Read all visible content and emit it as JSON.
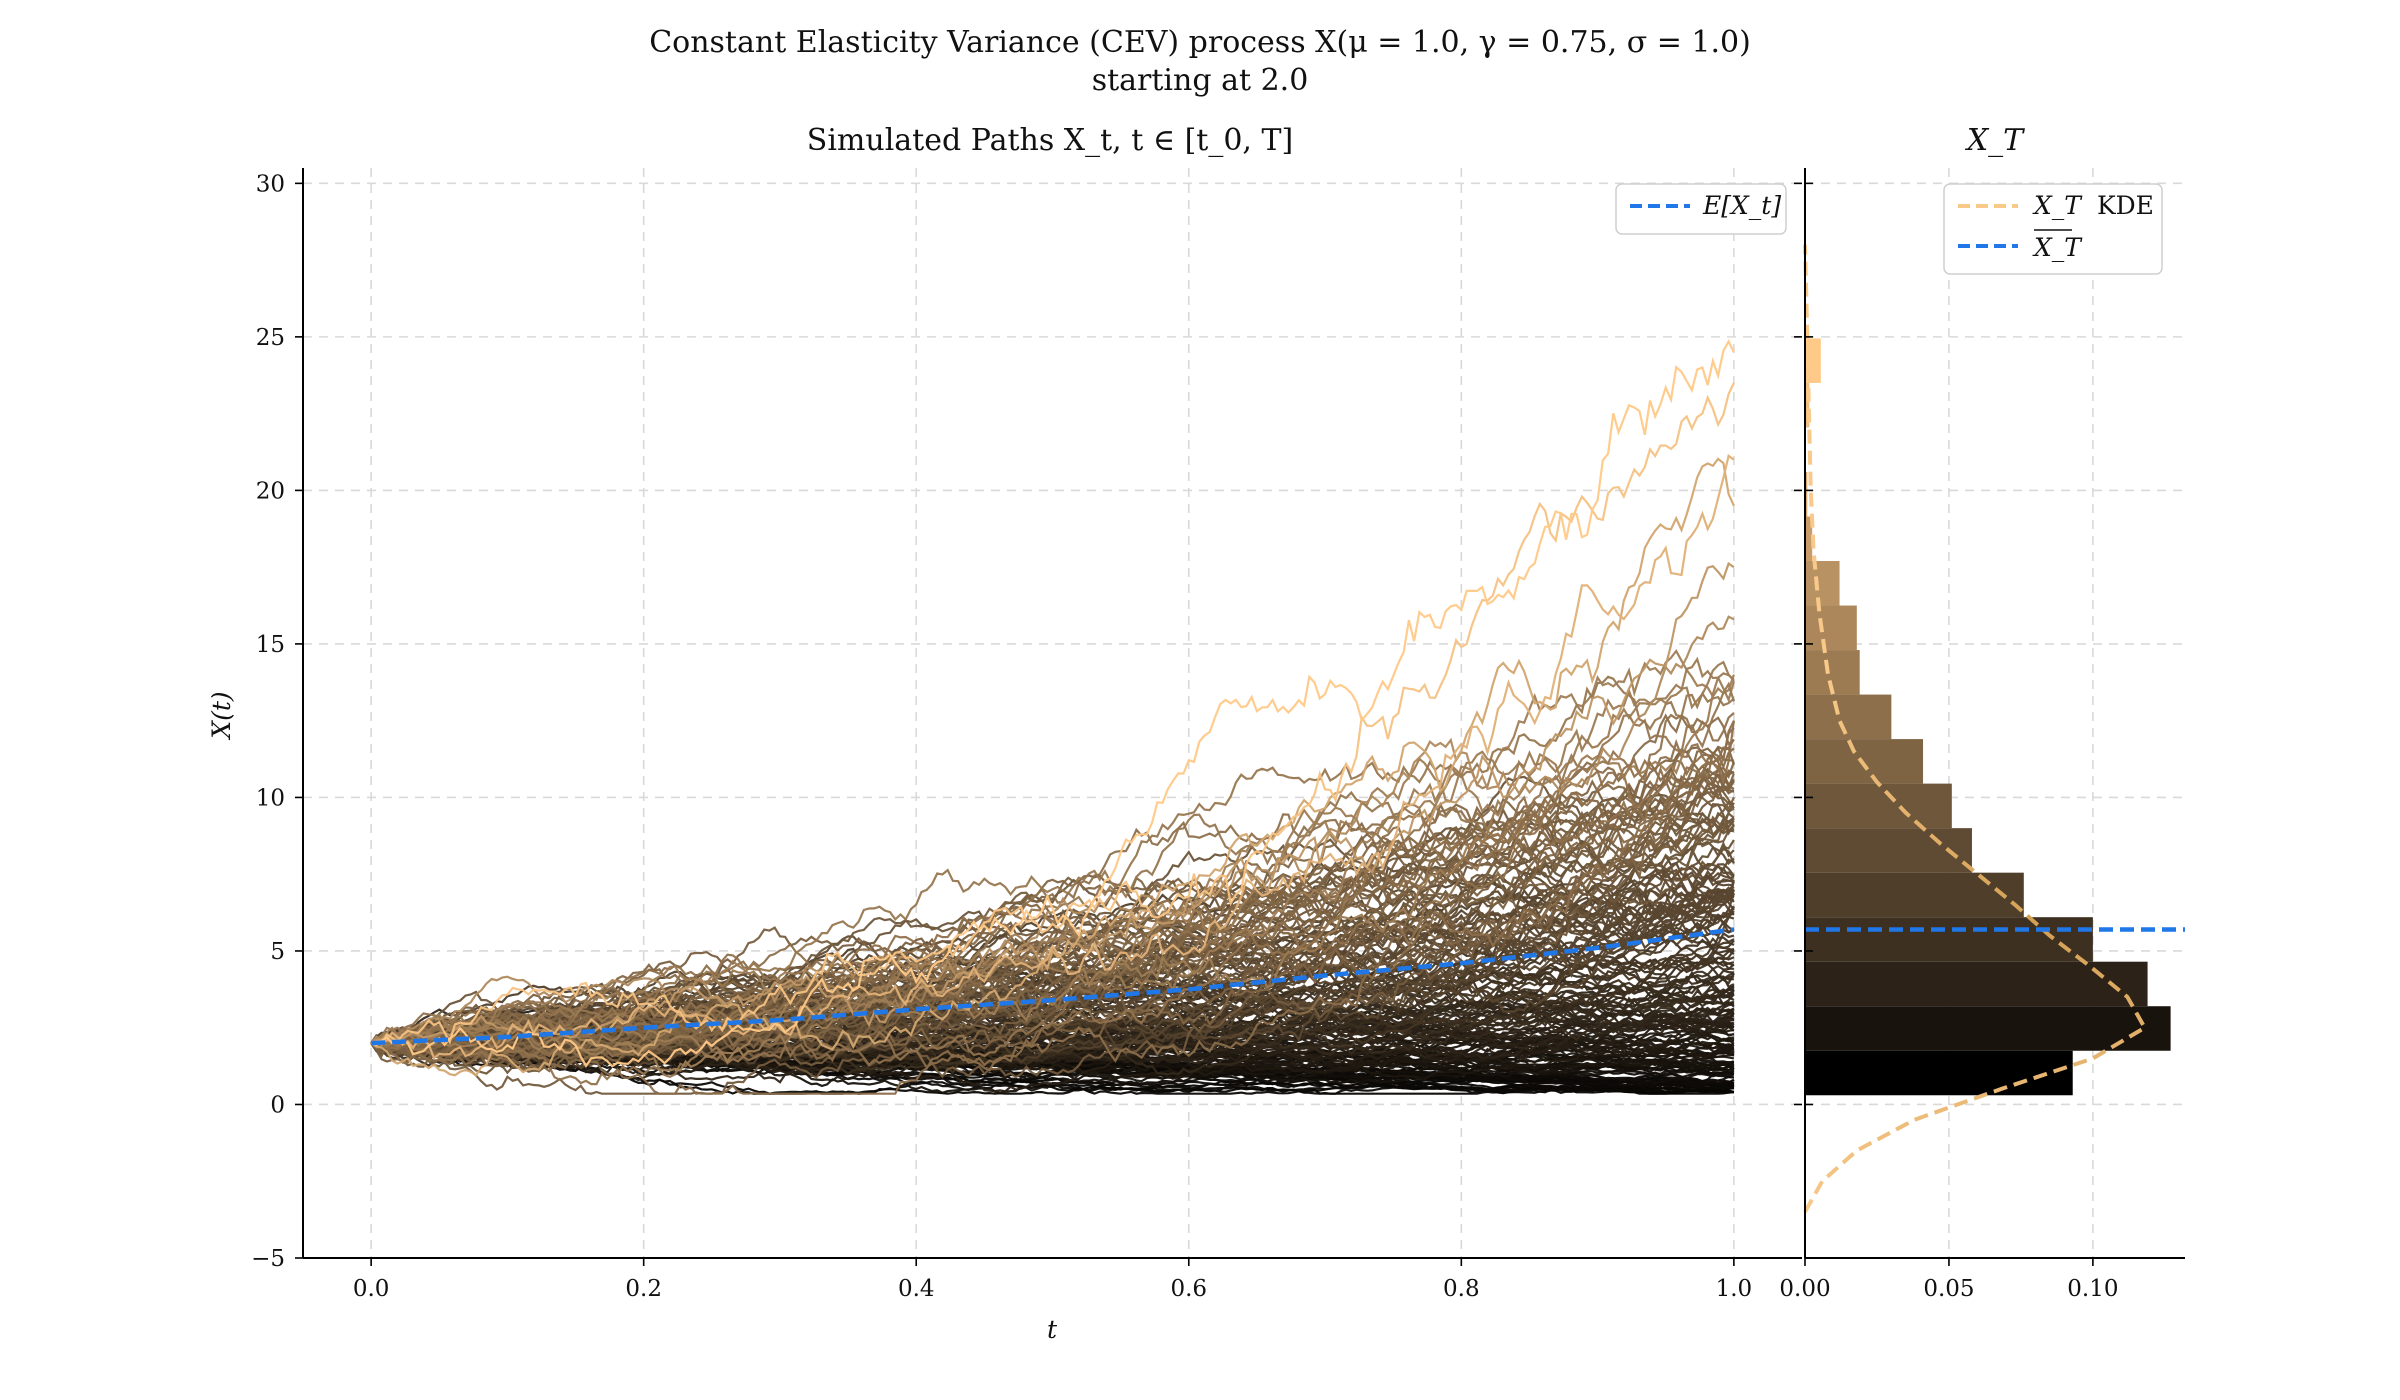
{
  "figure": {
    "title_line1": "Constant Elasticity Variance (CEV) process X(μ = 1.0, γ = 0.75, σ = 1.0)",
    "title_line2": "starting at 2.0"
  },
  "colors": {
    "expectation_line": "#1f77e8",
    "kde_line": "#f9c98a",
    "kde_line_dark": "#d4a055",
    "path_low": "#000000",
    "path_high": "#ffc988"
  },
  "chart_data": [
    {
      "type": "line",
      "title": "Simulated Paths X_t, t ∈ [t_0, T]",
      "xlabel": "t",
      "ylabel": "X(t)",
      "xlim": [
        -0.05,
        1.05
      ],
      "ylim": [
        -5,
        30.5
      ],
      "x_ticks": [
        0.0,
        0.2,
        0.4,
        0.6,
        0.8,
        1.0
      ],
      "x_tick_labels": [
        "0.0",
        "0.2",
        "0.4",
        "0.6",
        "0.8",
        "1.0"
      ],
      "y_ticks": [
        -5,
        0,
        5,
        10,
        15,
        20,
        25,
        30
      ],
      "y_tick_labels": [
        "−5",
        "0",
        "5",
        "10",
        "15",
        "20",
        "25",
        "30"
      ],
      "grid": true,
      "legend_position": "top-right",
      "series": [
        {
          "name": "E[X_t]",
          "style": "dashed",
          "x": [
            0.0,
            0.1,
            0.2,
            0.3,
            0.4,
            0.5,
            0.6,
            0.7,
            0.8,
            0.9,
            1.0
          ],
          "values": [
            2.0,
            2.2,
            2.5,
            2.75,
            3.1,
            3.4,
            3.75,
            4.2,
            4.6,
            5.1,
            5.7
          ]
        }
      ],
      "simulated_paths": {
        "start_value": 2.0,
        "terminal_values": [
          0.4,
          0.6,
          0.8,
          1.0,
          1.2,
          1.5,
          1.8,
          2.1,
          2.5,
          2.9,
          3.3,
          3.8,
          4.3,
          4.9,
          5.5,
          6.2,
          7.0,
          7.9,
          8.9,
          10.0,
          11.2,
          12.5,
          14.0,
          15.8,
          17.5,
          19.5,
          21.0,
          23.5,
          24.5
        ]
      }
    },
    {
      "type": "bar",
      "title": "X_T",
      "orientation": "horizontal",
      "xlim": [
        0,
        0.132
      ],
      "ylim": [
        -5,
        30.5
      ],
      "x_ticks": [
        0.0,
        0.05,
        0.1
      ],
      "x_tick_labels": [
        "0.00",
        "0.05",
        "0.10"
      ],
      "grid": true,
      "legend_position": "top-right",
      "bin_width": 1.45,
      "bins_start": 0.3,
      "densities": [
        0.093,
        0.127,
        0.119,
        0.1,
        0.076,
        0.058,
        0.051,
        0.041,
        0.03,
        0.019,
        0.018,
        0.012,
        0.0025,
        0.0008,
        0.0,
        0.0015,
        0.0055
      ],
      "series": [
        {
          "name": "X_T KDE",
          "style": "dashed",
          "y": [
            -3.5,
            -2.5,
            -1.5,
            -0.5,
            0.5,
            1.5,
            2.5,
            3.5,
            4.5,
            5.5,
            6.5,
            7.5,
            8.5,
            9.5,
            10.5,
            11.5,
            12.5,
            14,
            16,
            18,
            20,
            22,
            25,
            28
          ],
          "values": [
            0.0,
            0.006,
            0.018,
            0.038,
            0.068,
            0.1,
            0.118,
            0.112,
            0.099,
            0.085,
            0.073,
            0.06,
            0.047,
            0.035,
            0.025,
            0.017,
            0.012,
            0.008,
            0.005,
            0.003,
            0.002,
            0.0015,
            0.0008,
            0.0
          ]
        },
        {
          "name": "X_T mean",
          "style": "dashed",
          "value": 5.7
        }
      ]
    }
  ],
  "legends": {
    "left": {
      "expectation_label": "E[X_t]"
    },
    "right": {
      "kde_label_var": "X_T",
      "kde_label_suffix": "KDE",
      "mean_label": "X_T"
    }
  }
}
